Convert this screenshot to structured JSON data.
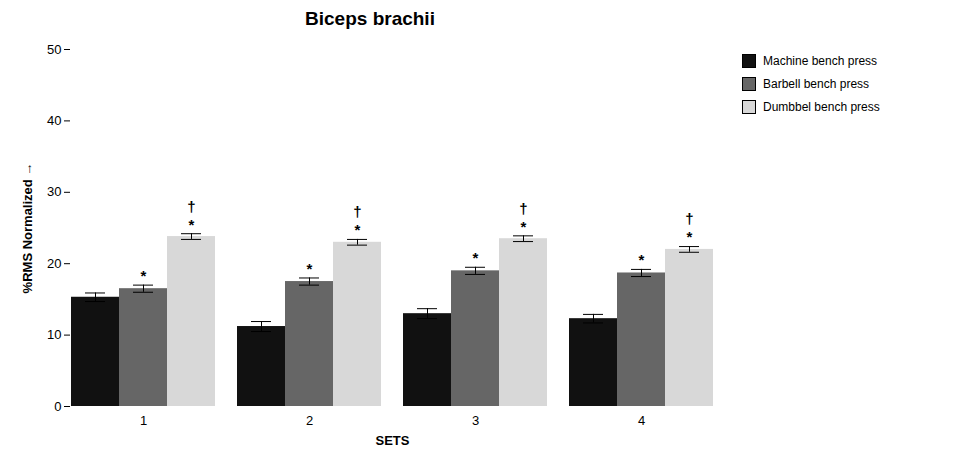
{
  "chart_data": {
    "type": "bar",
    "title": "Biceps brachii",
    "xlabel": "SETS",
    "ylabel": "%RMS Normalized",
    "categories": [
      "1",
      "2",
      "3",
      "4"
    ],
    "series": [
      {
        "name": "Machine bench press",
        "color": "#111111",
        "values": [
          15.3,
          11.2,
          13.0,
          12.3
        ],
        "errors": [
          0.6,
          0.7,
          0.7,
          0.6
        ]
      },
      {
        "name": "Barbell bench press",
        "color": "#666666",
        "values": [
          16.5,
          17.5,
          19.0,
          18.7
        ],
        "errors": [
          0.5,
          0.5,
          0.5,
          0.5
        ],
        "annotations": [
          "*"
        ]
      },
      {
        "name": "Dumbbel bench press",
        "color": "#d8d8d8",
        "values": [
          23.8,
          23.0,
          23.5,
          22.0
        ],
        "errors": [
          0.4,
          0.4,
          0.4,
          0.4
        ],
        "annotations": [
          "*",
          "†"
        ]
      }
    ],
    "ylim": [
      0,
      50
    ],
    "yticks": [
      0,
      10,
      20,
      30,
      40,
      50
    ],
    "grid": false,
    "legend": "right"
  }
}
